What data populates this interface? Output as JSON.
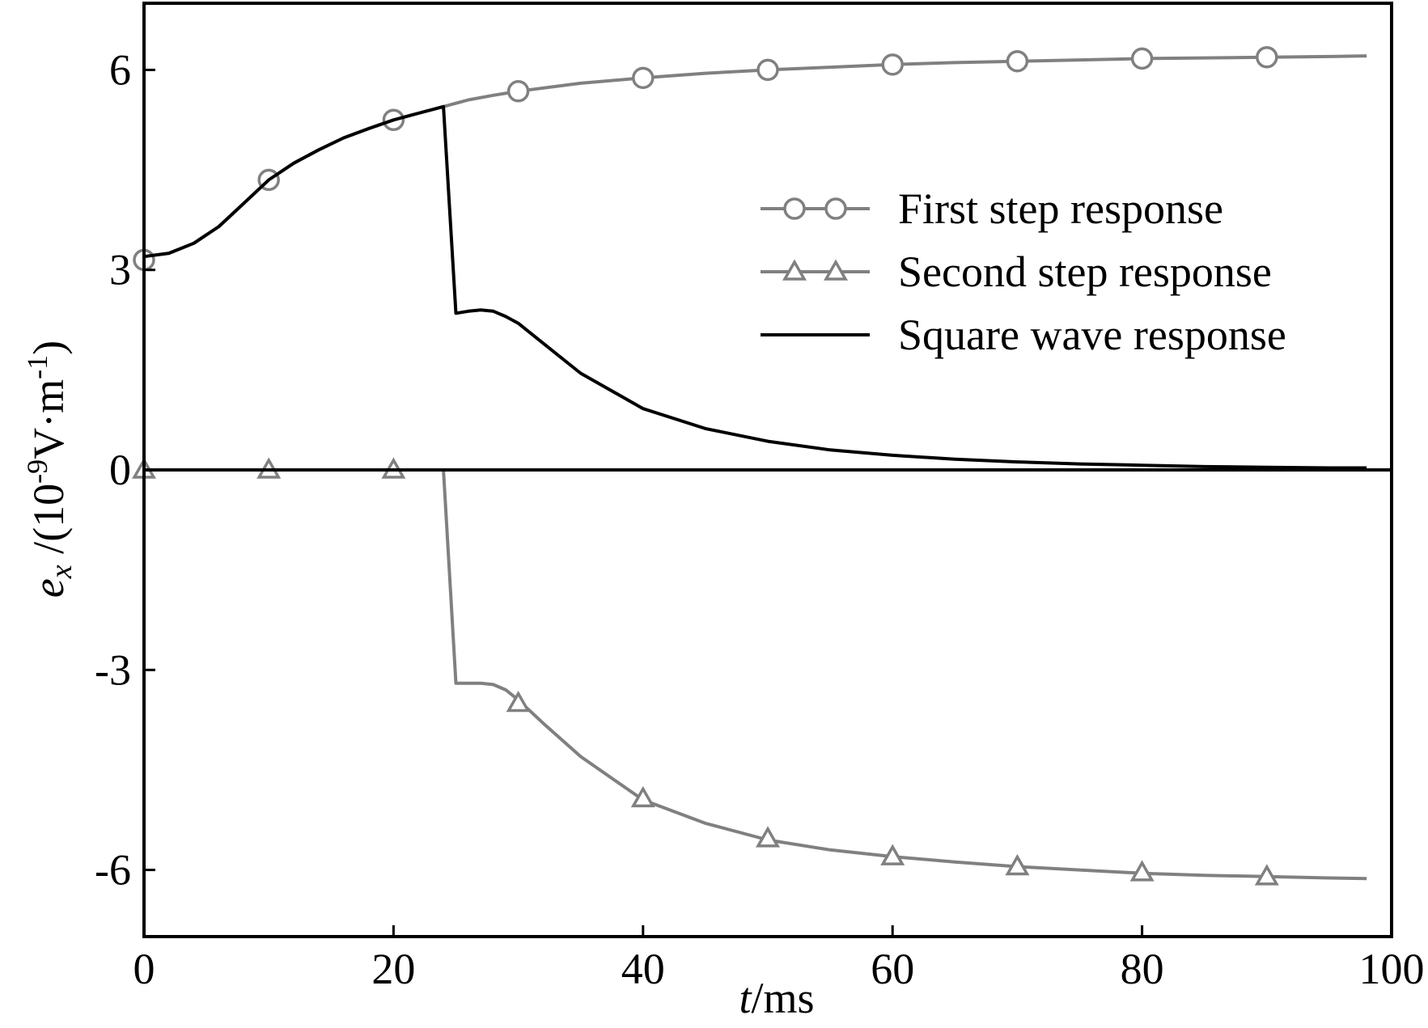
{
  "chart_data": {
    "type": "line",
    "title": "",
    "xlabel": {
      "var": "t",
      "unit": "/ms"
    },
    "ylabel": {
      "var": "e",
      "sub": "x",
      "pre": " /(10",
      "exp1": "-9",
      "mid": "V·m",
      "exp2": "-1",
      "post": ")"
    },
    "xlim": [
      0,
      100
    ],
    "ylim": [
      -7,
      7
    ],
    "xticks": [
      0,
      20,
      40,
      60,
      80,
      100
    ],
    "xtick_labels": [
      "0",
      "20",
      "40",
      "60",
      "80",
      "100"
    ],
    "yticks": [
      -6,
      -3,
      0,
      3,
      6
    ],
    "ytick_labels": [
      "-6",
      "-3",
      "0",
      "3",
      "6"
    ],
    "grid": false,
    "legend_position": "right-center",
    "series": [
      {
        "name": "First step response",
        "color": "#808080",
        "marker": "circle",
        "x": [
          0,
          2,
          4,
          6,
          8,
          10,
          12,
          14,
          16,
          18,
          20,
          22,
          24,
          26,
          28,
          30,
          35,
          40,
          45,
          50,
          55,
          60,
          65,
          70,
          75,
          80,
          85,
          90,
          95,
          98
        ],
        "y": [
          3.2,
          3.25,
          3.4,
          3.65,
          4.0,
          4.35,
          4.6,
          4.8,
          4.98,
          5.12,
          5.25,
          5.35,
          5.45,
          5.55,
          5.62,
          5.68,
          5.8,
          5.88,
          5.95,
          6.0,
          6.04,
          6.08,
          6.11,
          6.13,
          6.15,
          6.17,
          6.18,
          6.19,
          6.2,
          6.21
        ],
        "marker_x": [
          0,
          10,
          20,
          30,
          40,
          50,
          60,
          70,
          80,
          90
        ],
        "marker_y": [
          3.15,
          4.35,
          5.25,
          5.68,
          5.88,
          6.0,
          6.08,
          6.13,
          6.17,
          6.19
        ]
      },
      {
        "name": "Second step response",
        "color": "#808080",
        "marker": "triangle",
        "x": [
          0,
          10,
          20,
          24,
          25,
          26,
          27,
          28,
          29,
          30,
          32,
          35,
          40,
          45,
          50,
          55,
          60,
          65,
          70,
          75,
          80,
          85,
          90,
          95,
          98
        ],
        "y": [
          0,
          0,
          0,
          0,
          -3.2,
          -3.2,
          -3.2,
          -3.22,
          -3.3,
          -3.45,
          -3.8,
          -4.3,
          -4.95,
          -5.3,
          -5.55,
          -5.7,
          -5.8,
          -5.88,
          -5.95,
          -6.0,
          -6.05,
          -6.08,
          -6.1,
          -6.12,
          -6.13
        ],
        "marker_x": [
          0,
          10,
          20,
          30,
          40,
          50,
          60,
          70,
          80,
          90
        ],
        "marker_y": [
          0,
          0,
          0,
          -3.5,
          -4.93,
          -5.53,
          -5.8,
          -5.95,
          -6.04,
          -6.1
        ]
      },
      {
        "name": "Square wave response",
        "color": "#000000",
        "marker": "none",
        "x": [
          0,
          2,
          4,
          6,
          8,
          10,
          12,
          14,
          16,
          18,
          20,
          22,
          24,
          25,
          26,
          27,
          28,
          29,
          30,
          32,
          35,
          40,
          45,
          50,
          55,
          60,
          65,
          70,
          75,
          80,
          85,
          90,
          95,
          98
        ],
        "y": [
          3.2,
          3.25,
          3.4,
          3.65,
          4.0,
          4.35,
          4.6,
          4.8,
          4.98,
          5.12,
          5.25,
          5.35,
          5.45,
          2.35,
          2.38,
          2.4,
          2.38,
          2.3,
          2.2,
          1.9,
          1.45,
          0.92,
          0.62,
          0.43,
          0.3,
          0.22,
          0.16,
          0.12,
          0.09,
          0.07,
          0.05,
          0.04,
          0.03,
          0.03
        ]
      }
    ]
  }
}
